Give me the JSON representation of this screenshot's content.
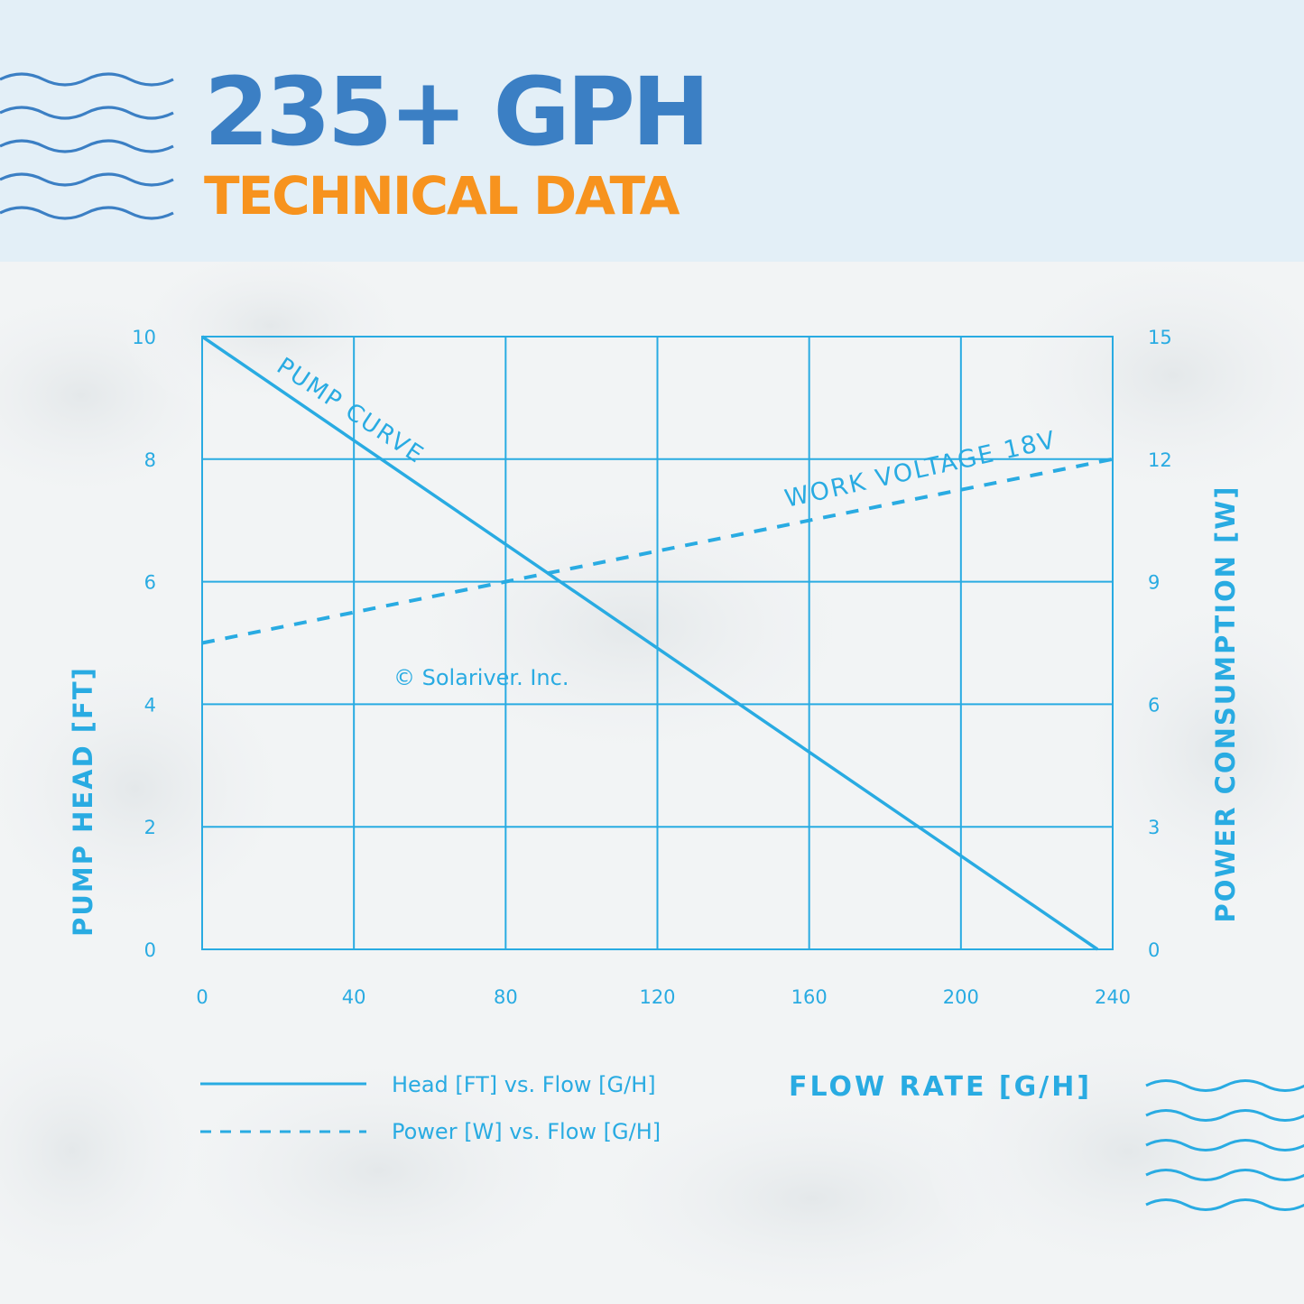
{
  "header": {
    "title": "235+ GPH",
    "subtitle": "TECHNICAL DATA",
    "decoration_icon": "wave-lines-icon"
  },
  "colors": {
    "header_bg": "#e3eff7",
    "title": "#3b7fc4",
    "subtitle": "#f7931e",
    "chart": "#29abe2"
  },
  "chart_data": {
    "type": "line",
    "xlabel": "FLOW RATE [G/H]",
    "ylabel": "PUMP HEAD [FT]",
    "y2label": "POWER CONSUMPTION [W]",
    "xlim": [
      0,
      240
    ],
    "ylim": [
      0,
      10
    ],
    "y2lim": [
      0,
      15
    ],
    "x_ticks": [
      "0",
      "40",
      "80",
      "120",
      "160",
      "200",
      "240"
    ],
    "y_ticks": [
      "0",
      "2",
      "4",
      "6",
      "8",
      "10"
    ],
    "y2_ticks": [
      "0",
      "3",
      "6",
      "9",
      "12",
      "15"
    ],
    "grid": true,
    "legend_position": "bottom-left",
    "series": [
      {
        "name": "Head [FT] vs. Flow [G/H]",
        "axis": "left",
        "style": "solid",
        "x": [
          0,
          236
        ],
        "y": [
          10,
          0
        ]
      },
      {
        "name": "Power [W] vs. Flow [G/H]",
        "axis": "right",
        "style": "dashed",
        "x": [
          0,
          240
        ],
        "y": [
          7.5,
          12
        ]
      }
    ],
    "annotations": [
      "PUMP CURVE",
      "WORK VOLTAGE 18V",
      "© Solariver. Inc."
    ]
  }
}
